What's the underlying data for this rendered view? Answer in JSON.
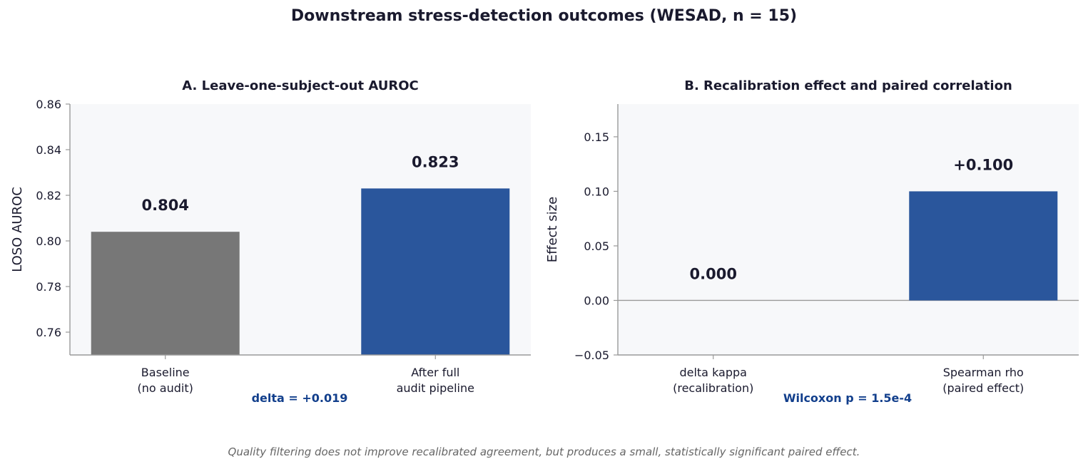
{
  "figure": {
    "title": "Downstream stress-detection outcomes (WESAD, n = 15)",
    "caption": "Quality filtering does not improve recalibrated agreement, but produces a small, statistically significant paired effect."
  },
  "colors": {
    "baseline": "#777777",
    "accent": "#2a569c",
    "plot_bg": "#f7f8fa",
    "axis": "#999999",
    "note": "#123f8c"
  },
  "chart_data": [
    {
      "type": "bar",
      "title": "A. Leave-one-subject-out AUROC",
      "categories": [
        "Baseline\n(no audit)",
        "After full\naudit pipeline"
      ],
      "values": [
        0.804,
        0.823
      ],
      "value_labels": [
        "0.804",
        "0.823"
      ],
      "bar_colors": [
        "#777777",
        "#2a569c"
      ],
      "xlabel": "",
      "ylabel": "LOSO AUROC",
      "ylim": [
        0.75,
        0.86
      ],
      "yticks": [
        0.76,
        0.78,
        0.8,
        0.82,
        0.84,
        0.86
      ],
      "ytick_labels": [
        "0.76",
        "0.78",
        "0.80",
        "0.82",
        "0.84",
        "0.86"
      ],
      "annotation": "delta = +0.019",
      "grid": false
    },
    {
      "type": "bar",
      "title": "B. Recalibration effect and paired correlation",
      "categories": [
        "delta kappa\n(recalibration)",
        "Spearman rho\n(paired effect)"
      ],
      "values": [
        0.0,
        0.1
      ],
      "value_labels": [
        "0.000",
        "+0.100"
      ],
      "bar_colors": [
        "#2a569c",
        "#2a569c"
      ],
      "xlabel": "",
      "ylabel": "Effect size",
      "ylim": [
        -0.05,
        0.18
      ],
      "yticks": [
        -0.05,
        0.0,
        0.05,
        0.1,
        0.15
      ],
      "ytick_labels": [
        "−0.05",
        "0.00",
        "0.05",
        "0.10",
        "0.15"
      ],
      "zero_line": true,
      "annotation": "Wilcoxon p = 1.5e-4",
      "grid": false
    }
  ]
}
